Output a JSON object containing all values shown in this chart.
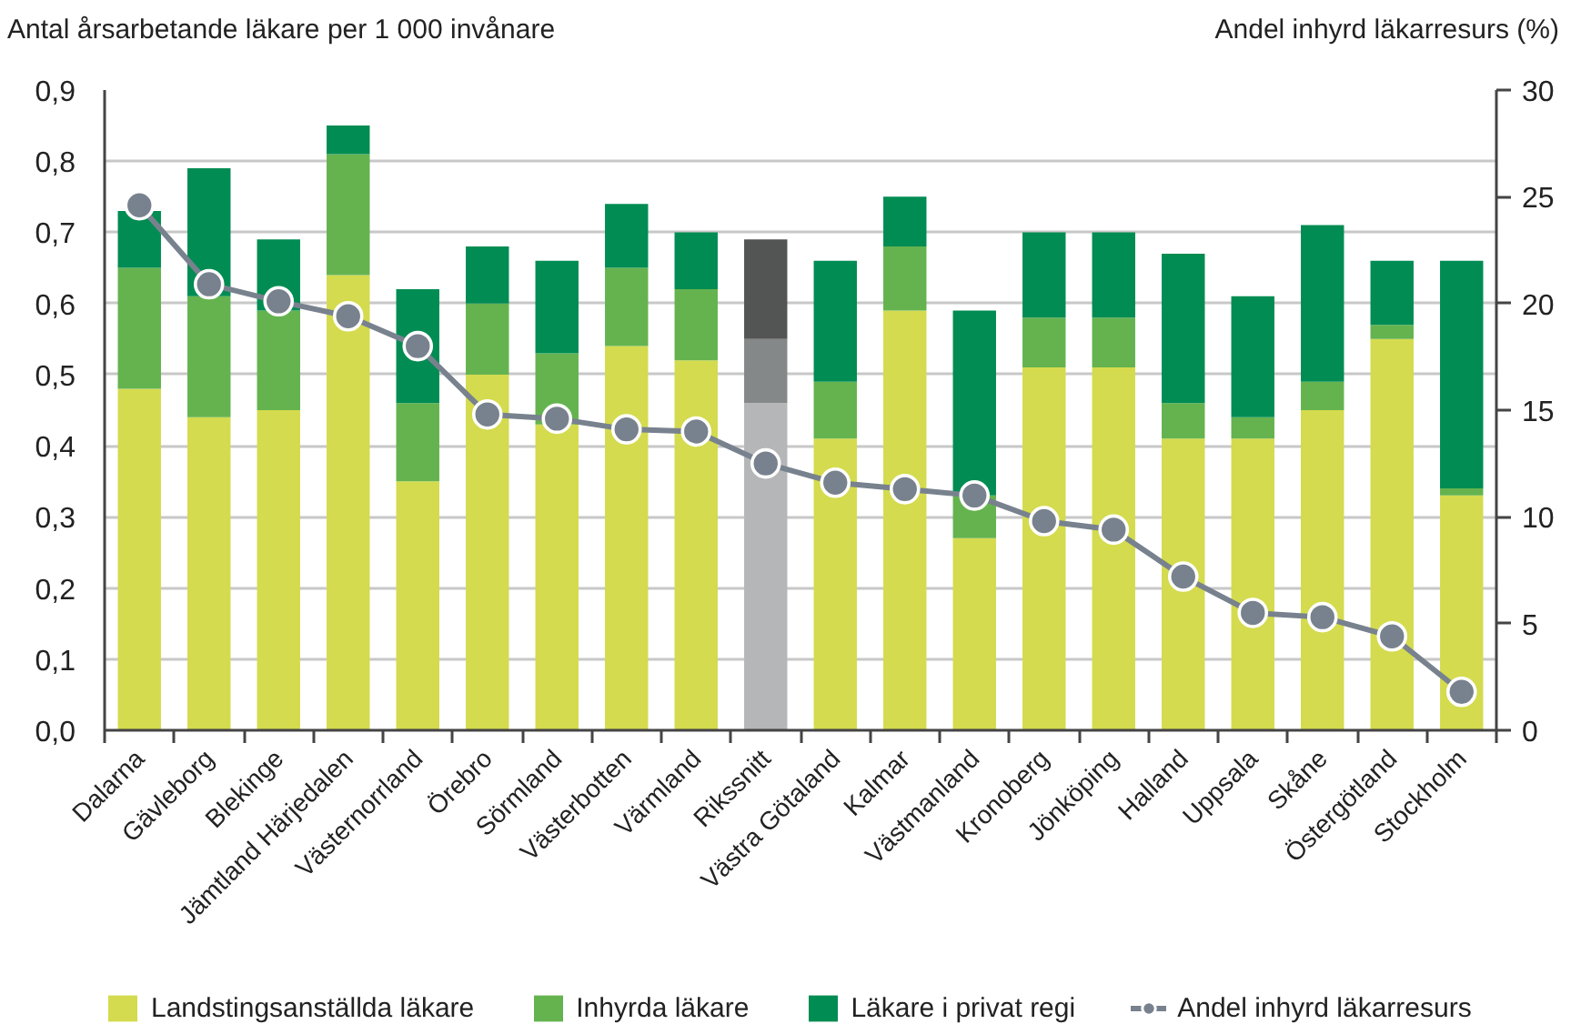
{
  "chart_data": {
    "type": "bar",
    "stacked": true,
    "ylabel": "Antal årsarbetande läkare per 1 000 invånare",
    "y2label": "Andel inhyrd läkarresurs (%)",
    "categories": [
      "Dalarna",
      "Gävleborg",
      "Blekinge",
      "Jämtland Härjedalen",
      "Västernorrland",
      "Örebro",
      "Sörmland",
      "Västerbotten",
      "Värmland",
      "Rikssnitt",
      "Västra Götaland",
      "Kalmar",
      "Västmanland",
      "Kronoberg",
      "Jönköping",
      "Halland",
      "Uppsala",
      "Skåne",
      "Östergötland",
      "Stockholm"
    ],
    "series": [
      {
        "name": "Landstingsanställda läkare",
        "color": "#d4db4e",
        "colors": [
          "#d4db4e",
          "#d4db4e",
          "#d4db4e",
          "#d4db4e",
          "#d4db4e",
          "#d4db4e",
          "#d4db4e",
          "#d4db4e",
          "#d4db4e",
          "#b5b6b8",
          "#d4db4e",
          "#d4db4e",
          "#d4db4e",
          "#d4db4e",
          "#d4db4e",
          "#d4db4e",
          "#d4db4e",
          "#d4db4e",
          "#d4db4e",
          "#d4db4e"
        ],
        "values": [
          0.48,
          0.44,
          0.45,
          0.64,
          0.35,
          0.5,
          0.43,
          0.54,
          0.52,
          0.46,
          0.41,
          0.59,
          0.27,
          0.51,
          0.51,
          0.41,
          0.41,
          0.45,
          0.55,
          0.33
        ]
      },
      {
        "name": "Inhyrda läkare",
        "color": "#64b34f",
        "colors": [
          "#64b34f",
          "#64b34f",
          "#64b34f",
          "#64b34f",
          "#64b34f",
          "#64b34f",
          "#64b34f",
          "#64b34f",
          "#64b34f",
          "#858888",
          "#64b34f",
          "#64b34f",
          "#64b34f",
          "#64b34f",
          "#64b34f",
          "#64b34f",
          "#64b34f",
          "#64b34f",
          "#64b34f",
          "#64b34f"
        ],
        "values": [
          0.17,
          0.17,
          0.14,
          0.17,
          0.11,
          0.1,
          0.1,
          0.11,
          0.1,
          0.09,
          0.08,
          0.09,
          0.06,
          0.07,
          0.07,
          0.05,
          0.03,
          0.04,
          0.02,
          0.01
        ]
      },
      {
        "name": "Läkare i privat regi",
        "color": "#008c52",
        "colors": [
          "#008c52",
          "#008c52",
          "#008c52",
          "#008c52",
          "#008c52",
          "#008c52",
          "#008c52",
          "#008c52",
          "#008c52",
          "#535554",
          "#008c52",
          "#008c52",
          "#008c52",
          "#008c52",
          "#008c52",
          "#008c52",
          "#008c52",
          "#008c52",
          "#008c52",
          "#008c52"
        ],
        "values": [
          0.08,
          0.18,
          0.1,
          0.04,
          0.16,
          0.08,
          0.13,
          0.09,
          0.08,
          0.14,
          0.17,
          0.07,
          0.26,
          0.12,
          0.12,
          0.21,
          0.17,
          0.22,
          0.09,
          0.32
        ]
      },
      {
        "name": "Andel inhyrd läkarresurs",
        "type": "line",
        "axis": "y2",
        "color": "#78828e",
        "values": [
          24.6,
          20.9,
          20.1,
          19.4,
          18.0,
          14.8,
          14.6,
          14.1,
          14.0,
          12.5,
          11.6,
          11.3,
          11.0,
          9.8,
          9.4,
          7.2,
          5.5,
          5.3,
          4.4,
          1.8
        ]
      }
    ],
    "ylim": [
      0,
      0.9
    ],
    "yticks": [
      {
        "value": 0,
        "label": "0,0"
      },
      {
        "value": 0.1,
        "label": "0,1"
      },
      {
        "value": 0.2,
        "label": "0,2"
      },
      {
        "value": 0.3,
        "label": "0,3"
      },
      {
        "value": 0.4,
        "label": "0,4"
      },
      {
        "value": 0.5,
        "label": "0,5"
      },
      {
        "value": 0.6,
        "label": "0,6"
      },
      {
        "value": 0.7,
        "label": "0,7"
      },
      {
        "value": 0.8,
        "label": "0,8"
      },
      {
        "value": 0.9,
        "label": "0,9"
      }
    ],
    "y2lim": [
      0,
      30
    ],
    "y2ticks": [
      0,
      5,
      10,
      15,
      20,
      25,
      30
    ],
    "grid": "y",
    "legend": "bottom",
    "marker": "circle",
    "line_style": "solid"
  }
}
